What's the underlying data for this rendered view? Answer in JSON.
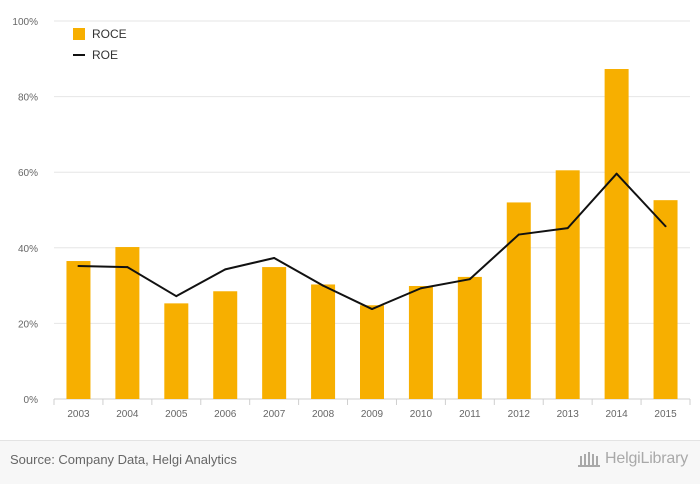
{
  "chart_data": {
    "type": "bar",
    "categories": [
      "2003",
      "2004",
      "2005",
      "2006",
      "2007",
      "2008",
      "2009",
      "2010",
      "2011",
      "2012",
      "2013",
      "2014",
      "2015"
    ],
    "series": [
      {
        "name": "ROCE",
        "type": "bar",
        "color": "#f7af00",
        "values": [
          36.5,
          40.2,
          25.3,
          28.5,
          34.9,
          30.3,
          24.8,
          29.9,
          32.3,
          52.0,
          60.5,
          87.3,
          52.6
        ]
      },
      {
        "name": "ROE",
        "type": "line",
        "color": "#111111",
        "values": [
          35.2,
          34.9,
          27.2,
          34.3,
          37.3,
          30.0,
          23.8,
          29.3,
          31.7,
          43.5,
          45.2,
          59.6,
          45.7
        ]
      }
    ],
    "ylim": [
      0,
      100
    ],
    "yticks": [
      0,
      20,
      40,
      60,
      80,
      100
    ],
    "ytick_format": "{v}%",
    "legend_position": "top-left",
    "grid": true
  },
  "footer": {
    "source": "Source: Company Data, Helgi Analytics",
    "brand": "HelgiLibrary"
  }
}
